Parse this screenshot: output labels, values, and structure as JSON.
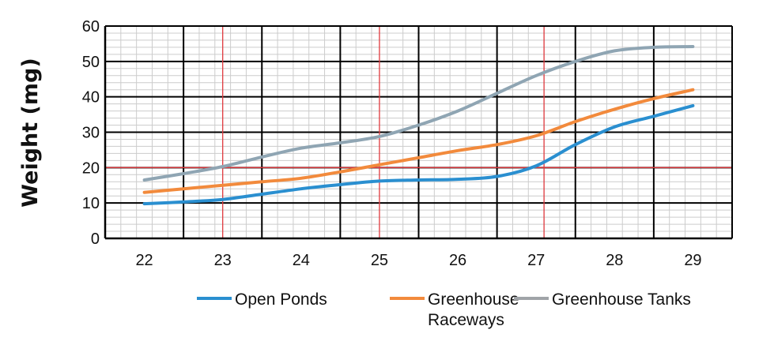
{
  "chart_data": {
    "type": "line",
    "title": "",
    "xlabel": "",
    "ylabel": "Weight (mg)",
    "x": [
      22,
      23,
      24,
      25,
      26,
      27,
      28,
      29
    ],
    "x_ticks": [
      "22",
      "23",
      "24",
      "25",
      "26",
      "27",
      "28",
      "29"
    ],
    "y_ticks": [
      "0",
      "10",
      "20",
      "30",
      "40",
      "50",
      "60"
    ],
    "xlim": [
      21.5,
      29.5
    ],
    "ylim": [
      0,
      60
    ],
    "grid": true,
    "reference_lines": {
      "x": [
        23,
        25,
        27.1
      ],
      "y": [
        20
      ],
      "color": "#e0393e"
    },
    "legend_position": "bottom",
    "colors": {
      "grid": "#000000",
      "minor_grid": "#cccccc",
      "reference": "#e0393e"
    },
    "series": [
      {
        "name": "Open Ponds",
        "color": "#2a8fd0",
        "x": [
          22,
          22.5,
          23,
          23.5,
          24,
          24.5,
          25,
          25.5,
          26,
          26.5,
          27,
          27.5,
          28,
          28.5,
          29
        ],
        "values": [
          9.8,
          10.3,
          11,
          12.5,
          14,
          15.2,
          16.2,
          16.5,
          16.7,
          17.5,
          20.5,
          26.5,
          31.5,
          34.5,
          37.5
        ]
      },
      {
        "name": "Greenhouse Raceways",
        "color": "#f28a3c",
        "x": [
          22,
          22.5,
          23,
          23.5,
          24,
          24.5,
          25,
          25.5,
          26,
          26.5,
          27,
          27.5,
          28,
          28.5,
          29
        ],
        "values": [
          13,
          14,
          15,
          16,
          17,
          18.8,
          20.8,
          22.8,
          24.8,
          26.5,
          29,
          33,
          36.5,
          39.5,
          42
        ]
      },
      {
        "name": "Greenhouse Tanks",
        "color": "#8fa5b3",
        "x": [
          22,
          22.5,
          23,
          23.5,
          24,
          24.5,
          25,
          25.5,
          26,
          26.5,
          27,
          27.5,
          28,
          28.5,
          29
        ],
        "values": [
          16.5,
          18.3,
          20.3,
          23,
          25.5,
          27,
          28.8,
          32,
          36,
          41,
          46,
          50,
          53,
          54,
          54.2
        ]
      }
    ],
    "legend": [
      {
        "label_lines": [
          "Open Ponds"
        ],
        "color": "#2a8fd0"
      },
      {
        "label_lines": [
          "Greenhouse",
          "Raceways"
        ],
        "color": "#f28a3c"
      },
      {
        "label_lines": [
          "Greenhouse Tanks"
        ],
        "color": "#a0a4a8"
      }
    ]
  }
}
